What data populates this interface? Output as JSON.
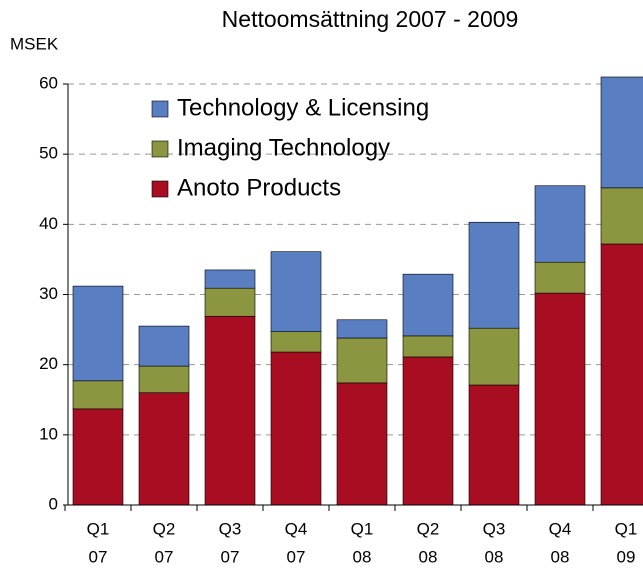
{
  "chart_data": {
    "type": "stacked_bar",
    "title": "Nettoomsättning 2007 - 2009",
    "y_label": "MSEK",
    "categories": [
      [
        "Q1",
        "07"
      ],
      [
        "Q2",
        "07"
      ],
      [
        "Q3",
        "07"
      ],
      [
        "Q4",
        "07"
      ],
      [
        "Q1",
        "08"
      ],
      [
        "Q2",
        "08"
      ],
      [
        "Q3",
        "08"
      ],
      [
        "Q4",
        "08"
      ],
      [
        "Q1",
        "09"
      ]
    ],
    "series": [
      {
        "name": "Anoto Products",
        "color": "#a80d22",
        "values": [
          13.7,
          16.0,
          26.9,
          21.8,
          17.4,
          21.1,
          17.1,
          30.2,
          37.2
        ]
      },
      {
        "name": "Imaging Technology",
        "color": "#8c9540",
        "values": [
          4.0,
          3.8,
          4.0,
          2.9,
          6.4,
          3.0,
          8.1,
          4.4,
          8.0
        ]
      },
      {
        "name": "Technology & Licensing",
        "color": "#5a7ec2",
        "values": [
          13.5,
          5.7,
          2.6,
          11.4,
          2.6,
          8.8,
          15.1,
          10.9,
          15.8
        ]
      }
    ],
    "ylim": [
      0,
      60
    ],
    "yticks": [
      0,
      10,
      20,
      30,
      40,
      50,
      60
    ],
    "grid": true,
    "legend": "upper left"
  }
}
